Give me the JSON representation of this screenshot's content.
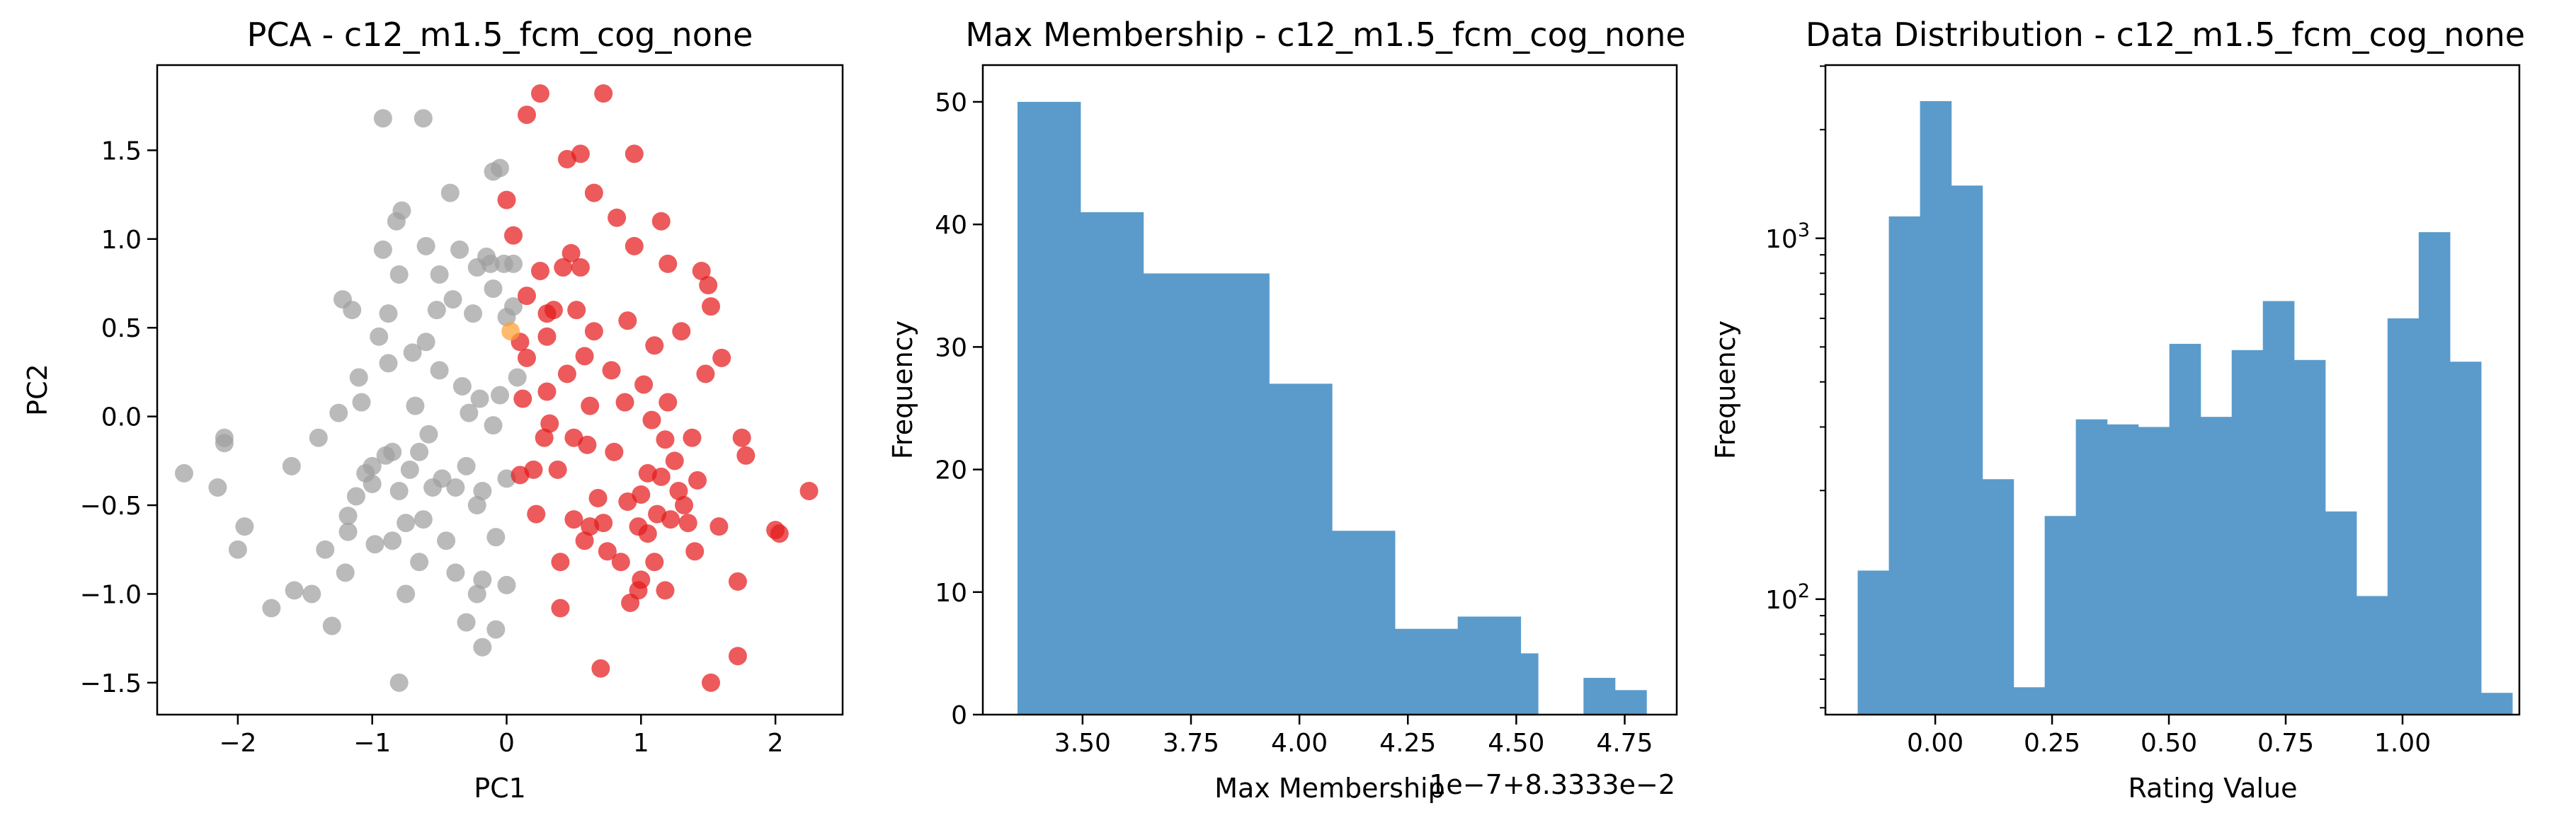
{
  "chart_data": [
    {
      "type": "scatter",
      "title": "PCA - c12_m1.5_fcm_cog_none",
      "xlabel": "PC1",
      "ylabel": "PC2",
      "xlim": [
        -2.6,
        2.5
      ],
      "ylim": [
        -1.68,
        1.98
      ],
      "xticks": [
        -2,
        -1,
        0,
        1,
        2
      ],
      "yticks": [
        -1.5,
        -1.0,
        -0.5,
        0.0,
        0.5,
        1.0,
        1.5
      ],
      "colors": {
        "gray": "#a0a0a0",
        "red": "#e41a1c",
        "orange": "#ff9f33"
      },
      "series": [
        {
          "color": "gray",
          "points": [
            [
              -2.4,
              -0.32
            ],
            [
              -2.15,
              -0.4
            ],
            [
              -2.1,
              -0.12
            ],
            [
              -2.1,
              -0.15
            ],
            [
              -2.0,
              -0.75
            ],
            [
              -1.95,
              -0.62
            ],
            [
              -1.75,
              -1.08
            ],
            [
              -1.6,
              -0.28
            ],
            [
              -1.58,
              -0.98
            ],
            [
              -1.45,
              -1.0
            ],
            [
              -1.4,
              -0.12
            ],
            [
              -1.35,
              -0.75
            ],
            [
              -1.3,
              -1.18
            ],
            [
              -1.25,
              0.02
            ],
            [
              -1.22,
              0.66
            ],
            [
              -1.2,
              -0.88
            ],
            [
              -1.18,
              -0.65
            ],
            [
              -1.18,
              -0.56
            ],
            [
              -1.15,
              0.6
            ],
            [
              -1.12,
              -0.45
            ],
            [
              -1.1,
              0.22
            ],
            [
              -1.08,
              0.08
            ],
            [
              -1.05,
              -0.32
            ],
            [
              -1.0,
              -0.38
            ],
            [
              -1.0,
              -0.28
            ],
            [
              -0.98,
              -0.72
            ],
            [
              -0.95,
              0.45
            ],
            [
              -0.92,
              0.94
            ],
            [
              -0.92,
              1.68
            ],
            [
              -0.9,
              -0.22
            ],
            [
              -0.88,
              0.58
            ],
            [
              -0.88,
              0.3
            ],
            [
              -0.85,
              -0.7
            ],
            [
              -0.85,
              -0.2
            ],
            [
              -0.82,
              1.1
            ],
            [
              -0.8,
              -0.42
            ],
            [
              -0.8,
              0.8
            ],
            [
              -0.8,
              -1.5
            ],
            [
              -0.78,
              1.16
            ],
            [
              -0.75,
              -1.0
            ],
            [
              -0.75,
              -0.6
            ],
            [
              -0.72,
              -0.3
            ],
            [
              -0.7,
              0.36
            ],
            [
              -0.68,
              0.06
            ],
            [
              -0.65,
              -0.82
            ],
            [
              -0.65,
              -0.2
            ],
            [
              -0.62,
              1.68
            ],
            [
              -0.6,
              0.96
            ],
            [
              -0.6,
              0.42
            ],
            [
              -0.58,
              -0.1
            ],
            [
              -0.55,
              -0.4
            ],
            [
              -0.52,
              0.6
            ],
            [
              -0.5,
              0.8
            ],
            [
              -0.5,
              0.26
            ],
            [
              -0.48,
              -0.35
            ],
            [
              -0.45,
              -0.7
            ],
            [
              -0.42,
              1.26
            ],
            [
              -0.4,
              0.66
            ],
            [
              -0.38,
              -0.4
            ],
            [
              -0.38,
              -0.88
            ],
            [
              -0.35,
              0.94
            ],
            [
              -0.33,
              0.17
            ],
            [
              -0.3,
              -0.28
            ],
            [
              -0.3,
              -1.16
            ],
            [
              -0.28,
              0.02
            ],
            [
              -0.25,
              0.58
            ],
            [
              -0.22,
              -0.5
            ],
            [
              -0.22,
              -1.0
            ],
            [
              -0.2,
              0.1
            ],
            [
              -0.18,
              -0.42
            ],
            [
              -0.18,
              -1.3
            ],
            [
              -0.15,
              0.9
            ],
            [
              -0.12,
              0.86
            ],
            [
              -0.1,
              -0.05
            ],
            [
              -0.1,
              0.72
            ],
            [
              -0.1,
              1.38
            ],
            [
              -0.08,
              -0.68
            ],
            [
              -0.05,
              1.4
            ],
            [
              -0.05,
              0.12
            ],
            [
              -0.02,
              0.86
            ],
            [
              0.0,
              -0.35
            ],
            [
              0.0,
              -0.95
            ],
            [
              -0.08,
              -1.2
            ],
            [
              0.0,
              0.56
            ],
            [
              0.05,
              0.62
            ],
            [
              0.05,
              0.86
            ],
            [
              0.08,
              0.22
            ],
            [
              -0.18,
              -0.92
            ],
            [
              -0.22,
              0.84
            ],
            [
              -0.62,
              -0.58
            ]
          ]
        },
        {
          "color": "red",
          "points": [
            [
              0.0,
              1.22
            ],
            [
              0.05,
              1.02
            ],
            [
              0.1,
              -0.33
            ],
            [
              0.1,
              0.42
            ],
            [
              0.12,
              0.1
            ],
            [
              0.15,
              0.33
            ],
            [
              0.15,
              0.68
            ],
            [
              0.15,
              1.7
            ],
            [
              0.2,
              -0.3
            ],
            [
              0.22,
              -0.55
            ],
            [
              0.25,
              1.82
            ],
            [
              0.25,
              0.82
            ],
            [
              0.28,
              -0.12
            ],
            [
              0.3,
              0.14
            ],
            [
              0.3,
              0.45
            ],
            [
              0.32,
              -0.04
            ],
            [
              0.35,
              0.6
            ],
            [
              0.38,
              -0.3
            ],
            [
              0.4,
              -0.82
            ],
            [
              0.4,
              -1.08
            ],
            [
              0.42,
              0.84
            ],
            [
              0.45,
              1.45
            ],
            [
              0.45,
              0.24
            ],
            [
              0.48,
              0.92
            ],
            [
              0.5,
              -0.58
            ],
            [
              0.5,
              -0.12
            ],
            [
              0.52,
              0.6
            ],
            [
              0.55,
              0.84
            ],
            [
              0.55,
              1.48
            ],
            [
              0.58,
              -0.7
            ],
            [
              0.58,
              0.34
            ],
            [
              0.6,
              -0.16
            ],
            [
              0.62,
              -0.62
            ],
            [
              0.62,
              0.06
            ],
            [
              0.65,
              0.48
            ],
            [
              0.65,
              1.26
            ],
            [
              0.68,
              -0.46
            ],
            [
              0.7,
              -1.42
            ],
            [
              0.72,
              -0.6
            ],
            [
              0.72,
              1.82
            ],
            [
              0.75,
              -0.76
            ],
            [
              0.78,
              0.26
            ],
            [
              0.8,
              -0.2
            ],
            [
              0.82,
              1.12
            ],
            [
              0.85,
              -0.82
            ],
            [
              0.88,
              0.08
            ],
            [
              0.9,
              -0.48
            ],
            [
              0.9,
              0.54
            ],
            [
              0.92,
              -1.05
            ],
            [
              0.95,
              1.48
            ],
            [
              0.95,
              0.96
            ],
            [
              0.98,
              -0.62
            ],
            [
              0.98,
              -0.98
            ],
            [
              1.0,
              -0.44
            ],
            [
              1.0,
              -0.92
            ],
            [
              1.02,
              0.18
            ],
            [
              1.05,
              -0.32
            ],
            [
              1.05,
              -0.66
            ],
            [
              1.08,
              -0.02
            ],
            [
              1.1,
              0.4
            ],
            [
              1.1,
              -0.82
            ],
            [
              1.12,
              -0.55
            ],
            [
              1.15,
              1.1
            ],
            [
              1.15,
              -0.34
            ],
            [
              1.18,
              -0.13
            ],
            [
              1.18,
              -0.98
            ],
            [
              1.2,
              0.08
            ],
            [
              1.2,
              0.86
            ],
            [
              1.22,
              -0.58
            ],
            [
              1.25,
              -0.25
            ],
            [
              1.28,
              -0.42
            ],
            [
              1.3,
              0.48
            ],
            [
              1.32,
              -0.5
            ],
            [
              1.35,
              -0.6
            ],
            [
              1.38,
              -0.12
            ],
            [
              1.4,
              -0.76
            ],
            [
              1.42,
              -0.36
            ],
            [
              1.45,
              0.82
            ],
            [
              1.48,
              0.24
            ],
            [
              1.5,
              0.74
            ],
            [
              1.52,
              -1.5
            ],
            [
              1.52,
              0.62
            ],
            [
              1.58,
              -0.62
            ],
            [
              1.6,
              0.33
            ],
            [
              1.72,
              -1.35
            ],
            [
              1.72,
              -0.93
            ],
            [
              1.75,
              -0.12
            ],
            [
              1.78,
              -0.22
            ],
            [
              2.0,
              -0.64
            ],
            [
              2.03,
              -0.66
            ],
            [
              2.25,
              -0.42
            ],
            [
              0.3,
              0.58
            ]
          ]
        },
        {
          "color": "orange",
          "points": [
            [
              0.03,
              0.48
            ]
          ]
        }
      ]
    },
    {
      "type": "bar",
      "title": "Max Membership - c12_m1.5_fcm_cog_none",
      "xlabel": "Max Membership",
      "ylabel": "Frequency",
      "offset_text": "1e−7+8.3333e−2",
      "xlim": [
        3.27,
        4.87
      ],
      "ylim": [
        0,
        53
      ],
      "xticks": [
        "3.50",
        "3.75",
        "4.00",
        "4.25",
        "4.50",
        "4.75"
      ],
      "xtick_values": [
        3.5,
        3.75,
        4.0,
        4.25,
        4.5,
        4.75
      ],
      "yticks": [
        0,
        10,
        20,
        30,
        40,
        50
      ],
      "bin_edges": [
        3.35,
        3.4225,
        3.495,
        3.5675,
        3.64,
        3.7125,
        3.785,
        3.8575,
        3.93,
        4.0025,
        4.075,
        4.1475,
        4.22,
        4.2925,
        4.365,
        4.4375,
        4.51,
        4.5825,
        4.655,
        4.7275,
        4.8
      ],
      "values": [
        50,
        50,
        41,
        41,
        36,
        36,
        36,
        36,
        27,
        27,
        15,
        15,
        7,
        7,
        8,
        8,
        5,
        5,
        3,
        3
      ],
      "overrides": {
        "gap_from": 4.55,
        "gap_to": 4.69,
        "last_value": 2
      },
      "color": "#5b9bcb"
    },
    {
      "type": "bar",
      "title": "Data Distribution - c12_m1.5_fcm_cog_none",
      "xlabel": "Rating Value",
      "ylabel": "Frequency",
      "yscale": "log",
      "xlim": [
        -0.235,
        1.25
      ],
      "ylim_log10": [
        1.68,
        3.48
      ],
      "xticks": [
        "0.00",
        "0.25",
        "0.50",
        "0.75",
        "1.00"
      ],
      "xtick_values": [
        0.0,
        0.25,
        0.5,
        0.75,
        1.0
      ],
      "ymajor_ticks": [
        100,
        1000
      ],
      "bin_start": -0.166,
      "bin_width": 0.0667,
      "values": [
        120,
        1150,
        2400,
        1400,
        215,
        57,
        170,
        315,
        305,
        300,
        510,
        320,
        490,
        670,
        460,
        175,
        102,
        600,
        1040,
        455,
        55
      ],
      "color": "#5b9bcb"
    }
  ]
}
